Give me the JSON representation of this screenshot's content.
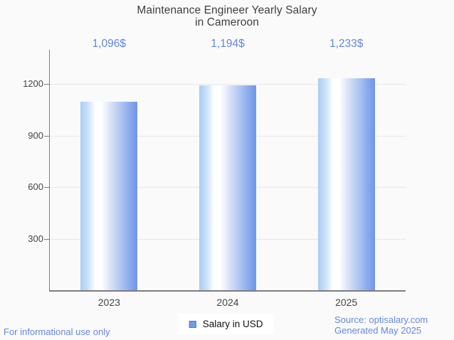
{
  "chart_data": {
    "type": "bar",
    "title": "Maintenance Engineer Yearly Salary",
    "subtitle": "in Cameroon",
    "categories": [
      "2023",
      "2024",
      "2025"
    ],
    "series": [
      {
        "name": "Salary in USD",
        "values": [
          1096,
          1194,
          1233
        ],
        "value_labels": [
          "1,096$",
          "1,194$",
          "1,233$"
        ]
      }
    ],
    "xlabel": "",
    "ylabel": "",
    "yticks": [
      300,
      600,
      900,
      1200
    ],
    "ylim": [
      0,
      1400
    ],
    "grid": true,
    "legend_position": "bottom-center",
    "bar_style": "cylinder-gradient"
  },
  "legend": {
    "label": "Salary in USD"
  },
  "footer": {
    "disclaimer": "For informational use only",
    "source": "Source: optisalary.com",
    "generated": "Generated May 2025"
  },
  "colors": {
    "background": "#fafafa",
    "title_text": "#3e3e3e",
    "axis_text": "#454545",
    "accent_text": "#6288e2",
    "bar_main": "#7195e8",
    "bar_light": "#a9cdf5",
    "legend_marker_fill": "#6d9deb",
    "legend_marker_border": "#4a79c6",
    "legend_text": "#111111",
    "gridline": "#e7e7e7",
    "axis_line": "#7d7d7d"
  }
}
